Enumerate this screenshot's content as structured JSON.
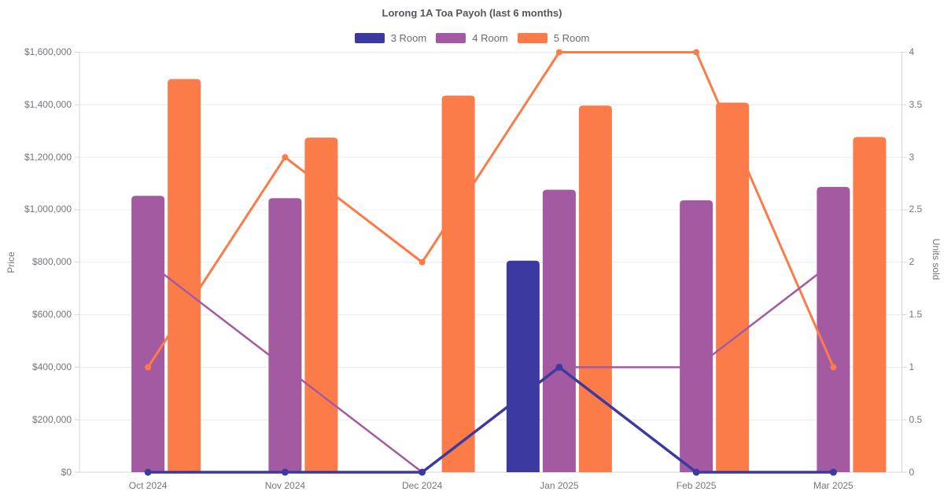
{
  "title": "Lorong 1A Toa Payoh (last 6 months)",
  "chart_data": {
    "type": "bar+line",
    "title": "Lorong 1A Toa Payoh (last 6 months)",
    "categories": [
      "Oct 2024",
      "Nov 2024",
      "Dec 2024",
      "Jan 2025",
      "Feb 2025",
      "Mar 2025"
    ],
    "series": [
      {
        "name": "3 Room",
        "color": "#3c3aa0",
        "avg_price": [
          null,
          null,
          null,
          806000,
          null,
          null
        ],
        "units_sold": [
          0,
          0,
          0,
          1,
          0,
          0
        ]
      },
      {
        "name": "4 Room",
        "color": "#a45aa0",
        "avg_price": [
          1053000,
          1044000,
          null,
          1076000,
          1036000,
          1087000
        ],
        "units_sold": [
          2,
          1,
          0,
          1,
          1,
          2
        ]
      },
      {
        "name": "5 Room",
        "color": "#fb7c48",
        "avg_price": [
          1498000,
          1275000,
          1435000,
          1397000,
          1408000,
          1277000
        ],
        "units_sold": [
          1,
          3,
          2,
          4,
          4,
          1
        ]
      }
    ],
    "left_axis": {
      "label": "Price",
      "min": 0,
      "max": 1600000,
      "tick_labels": [
        "$0",
        "$200,000",
        "$400,000",
        "$600,000",
        "$800,000",
        "$1,000,000",
        "$1,200,000",
        "$1,400,000",
        "$1,600,000"
      ]
    },
    "right_axis": {
      "label": "Units sold",
      "min": 0,
      "max": 4,
      "tick_labels": [
        "0",
        "0.5",
        "1",
        "1.5",
        "2",
        "2.5",
        "3",
        "3.5",
        "4"
      ]
    },
    "legend_position": "top",
    "grid": "horizontal-only",
    "colors": {
      "grid": "#ececec",
      "axis_border": "#d6d6d6",
      "tick_text": "#75757d",
      "title_text": "#55555d"
    }
  }
}
